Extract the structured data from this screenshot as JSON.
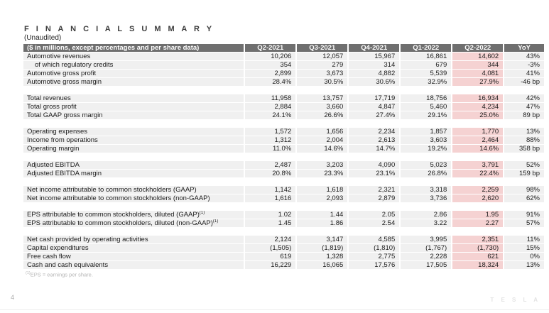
{
  "header": {
    "title": "F I N A N C I A L   S U M M A R Y",
    "subtitle": "(Unaudited)"
  },
  "table": {
    "label_header": "($ in millions, except percentages and per share data)",
    "columns": [
      "Q2-2021",
      "Q3-2021",
      "Q4-2021",
      "Q1-2022",
      "Q2-2022",
      "YoY"
    ],
    "highlight_column": "Q2-2022",
    "colors": {
      "header_bg": "#6f6f6f",
      "row_bg": "#f0f0f0",
      "highlight_bg": "#f5d2d2",
      "header_text": "#ffffff",
      "body_text": "#1c1c1c"
    },
    "sections": [
      {
        "rows": [
          {
            "label": "Automotive revenues",
            "values": [
              "10,206",
              "12,057",
              "15,967",
              "16,861",
              "14,602",
              "43%"
            ]
          },
          {
            "label": "of which regulatory credits",
            "indent": true,
            "values": [
              "354",
              "279",
              "314",
              "679",
              "344",
              "-3%"
            ]
          },
          {
            "label": "Automotive gross profit",
            "values": [
              "2,899",
              "3,673",
              "4,882",
              "5,539",
              "4,081",
              "41%"
            ]
          },
          {
            "label": "Automotive gross margin",
            "values": [
              "28.4%",
              "30.5%",
              "30.6%",
              "32.9%",
              "27.9%",
              "-46 bp"
            ]
          }
        ]
      },
      {
        "rows": [
          {
            "label": "Total revenues",
            "values": [
              "11,958",
              "13,757",
              "17,719",
              "18,756",
              "16,934",
              "42%"
            ]
          },
          {
            "label": "Total gross profit",
            "values": [
              "2,884",
              "3,660",
              "4,847",
              "5,460",
              "4,234",
              "47%"
            ]
          },
          {
            "label": "Total GAAP gross margin",
            "values": [
              "24.1%",
              "26.6%",
              "27.4%",
              "29.1%",
              "25.0%",
              "89 bp"
            ]
          }
        ]
      },
      {
        "rows": [
          {
            "label": "Operating expenses",
            "values": [
              "1,572",
              "1,656",
              "2,234",
              "1,857",
              "1,770",
              "13%"
            ]
          },
          {
            "label": "Income from operations",
            "values": [
              "1,312",
              "2,004",
              "2,613",
              "3,603",
              "2,464",
              "88%"
            ]
          },
          {
            "label": "Operating margin",
            "values": [
              "11.0%",
              "14.6%",
              "14.7%",
              "19.2%",
              "14.6%",
              "358 bp"
            ]
          }
        ]
      },
      {
        "rows": [
          {
            "label": "Adjusted EBITDA",
            "values": [
              "2,487",
              "3,203",
              "4,090",
              "5,023",
              "3,791",
              "52%"
            ]
          },
          {
            "label": "Adjusted EBITDA margin",
            "values": [
              "20.8%",
              "23.3%",
              "23.1%",
              "26.8%",
              "22.4%",
              "159 bp"
            ]
          }
        ]
      },
      {
        "rows": [
          {
            "label": "Net income attributable to common stockholders (GAAP)",
            "values": [
              "1,142",
              "1,618",
              "2,321",
              "3,318",
              "2,259",
              "98%"
            ]
          },
          {
            "label": "Net income attributable to common stockholders (non-GAAP)",
            "values": [
              "1,616",
              "2,093",
              "2,879",
              "3,736",
              "2,620",
              "62%"
            ]
          }
        ]
      },
      {
        "rows": [
          {
            "label": "EPS attributable to common stockholders, diluted (GAAP)",
            "sup": "(1)",
            "values": [
              "1.02",
              "1.44",
              "2.05",
              "2.86",
              "1.95",
              "91%"
            ]
          },
          {
            "label": "EPS attributable to common stockholders, diluted (non-GAAP)",
            "sup": "(1)",
            "values": [
              "1.45",
              "1.86",
              "2.54",
              "3.22",
              "2.27",
              "57%"
            ]
          }
        ]
      },
      {
        "rows": [
          {
            "label": "Net cash provided by operating activities",
            "values": [
              "2,124",
              "3,147",
              "4,585",
              "3,995",
              "2,351",
              "11%"
            ]
          },
          {
            "label": "Capital expenditures",
            "values": [
              "(1,505)",
              "(1,819)",
              "(1,810)",
              "(1,767)",
              "(1,730)",
              "15%"
            ]
          },
          {
            "label": "Free cash flow",
            "values": [
              "619",
              "1,328",
              "2,775",
              "2,228",
              "621",
              "0%"
            ]
          },
          {
            "label": "Cash and cash equivalents",
            "values": [
              "16,229",
              "16,065",
              "17,576",
              "17,505",
              "18,324",
              "13%"
            ]
          }
        ]
      }
    ]
  },
  "footnote": {
    "sup": "(1)",
    "text": "EPS = earnings per share."
  },
  "page": {
    "number": "4",
    "watermark": "T E S L A"
  }
}
